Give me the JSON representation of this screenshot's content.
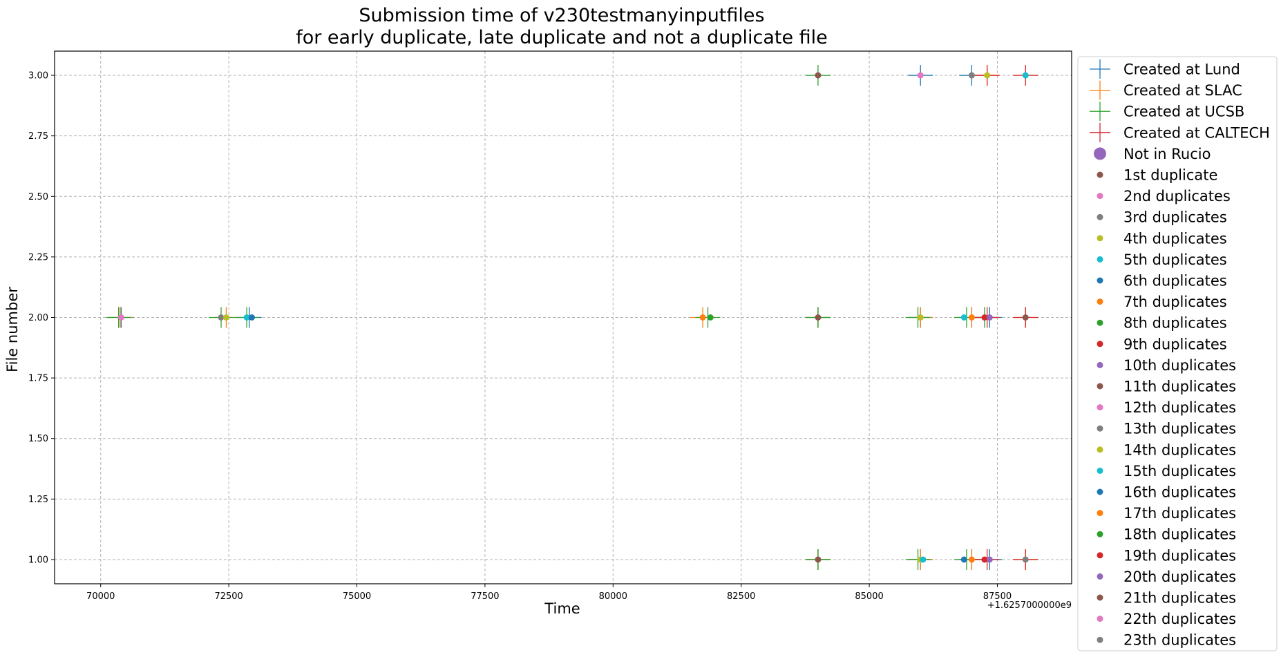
{
  "chart_data": {
    "type": "scatter",
    "title": "Submission time of v230testmanyinputfiles",
    "subtitle": "for early duplicate, late duplicate and not a duplicate file",
    "xlabel": "Time",
    "ylabel": "File number",
    "x_offset_label": "+1.6257000000e9",
    "xlim": [
      69100,
      88950
    ],
    "ylim": [
      0.9,
      3.1
    ],
    "xticks": [
      70000,
      72500,
      75000,
      77500,
      80000,
      82500,
      85000,
      87500
    ],
    "xtick_labels": [
      "70000",
      "72500",
      "75000",
      "77500",
      "80000",
      "82500",
      "85000",
      "87500"
    ],
    "yticks": [
      1.0,
      1.25,
      1.5,
      1.75,
      2.0,
      2.25,
      2.5,
      2.75,
      3.0
    ],
    "ytick_labels": [
      "1.00",
      "1.25",
      "1.50",
      "1.75",
      "2.00",
      "2.25",
      "2.50",
      "2.75",
      "3.00"
    ],
    "grid": true,
    "legend_placement": "outside-right",
    "created_series": [
      {
        "name": "Created at Lund",
        "color": "#1f77b4",
        "points": [
          [
            70400,
            2
          ],
          [
            72900,
            2
          ],
          [
            84000,
            1
          ],
          [
            84000,
            2
          ],
          [
            86000,
            1
          ],
          [
            86000,
            2
          ],
          [
            86000,
            3
          ],
          [
            87000,
            1
          ],
          [
            87000,
            2
          ],
          [
            87000,
            3
          ],
          [
            87350,
            1
          ],
          [
            87350,
            2
          ]
        ]
      },
      {
        "name": "Created at SLAC",
        "color": "#ff7f0e",
        "points": [
          [
            70380,
            2
          ],
          [
            72450,
            2
          ],
          [
            81750,
            2
          ],
          [
            84000,
            1
          ],
          [
            84000,
            2
          ],
          [
            86000,
            1
          ],
          [
            86000,
            2
          ],
          [
            87000,
            1
          ],
          [
            87000,
            2
          ],
          [
            87300,
            3
          ],
          [
            88050,
            1
          ],
          [
            88050,
            2
          ]
        ]
      },
      {
        "name": "Created at UCSB",
        "color": "#2ca02c",
        "points": [
          [
            70350,
            2
          ],
          [
            72350,
            2
          ],
          [
            72850,
            2
          ],
          [
            81850,
            2
          ],
          [
            84000,
            1
          ],
          [
            84000,
            2
          ],
          [
            84000,
            3
          ],
          [
            85950,
            1
          ],
          [
            85950,
            2
          ],
          [
            86900,
            1
          ],
          [
            86900,
            2
          ],
          [
            87250,
            2
          ]
        ]
      },
      {
        "name": "Created at CALTECH",
        "color": "#d62728",
        "points": [
          [
            87300,
            1
          ],
          [
            87300,
            2
          ],
          [
            87300,
            3
          ],
          [
            88050,
            1
          ],
          [
            88050,
            2
          ],
          [
            88050,
            3
          ]
        ]
      }
    ],
    "not_in_rucio": {
      "name": "Not in Rucio",
      "color": "#9467bd"
    },
    "duplicate_series": [
      {
        "name": "1st duplicate",
        "color": "#8c564b",
        "points": [
          [
            84000,
            1
          ],
          [
            84000,
            2
          ],
          [
            84000,
            3
          ]
        ]
      },
      {
        "name": "2nd duplicates",
        "color": "#e377c2",
        "points": [
          [
            70400,
            2
          ],
          [
            86000,
            3
          ]
        ]
      },
      {
        "name": "3rd duplicates",
        "color": "#7f7f7f",
        "points": [
          [
            72350,
            2
          ],
          [
            87000,
            3
          ]
        ]
      },
      {
        "name": "4th duplicates",
        "color": "#bcbd22",
        "points": [
          [
            72450,
            2
          ],
          [
            86000,
            1
          ],
          [
            86000,
            2
          ],
          [
            87300,
            3
          ]
        ]
      },
      {
        "name": "5th duplicates",
        "color": "#17becf",
        "points": [
          [
            72850,
            2
          ],
          [
            86050,
            1
          ],
          [
            86850,
            2
          ],
          [
            88050,
            3
          ]
        ]
      },
      {
        "name": "6th duplicates",
        "color": "#1f77b4",
        "points": [
          [
            72950,
            2
          ],
          [
            86850,
            1
          ]
        ]
      },
      {
        "name": "7th duplicates",
        "color": "#ff7f0e",
        "points": [
          [
            81750,
            2
          ],
          [
            87000,
            1
          ],
          [
            87000,
            2
          ]
        ]
      },
      {
        "name": "8th duplicates",
        "color": "#2ca02c",
        "points": [
          [
            81900,
            2
          ]
        ]
      },
      {
        "name": "9th duplicates",
        "color": "#d62728",
        "points": [
          [
            87250,
            1
          ],
          [
            87250,
            2
          ]
        ]
      },
      {
        "name": "10th duplicates",
        "color": "#9467bd",
        "points": [
          [
            87350,
            1
          ],
          [
            87350,
            2
          ]
        ]
      },
      {
        "name": "11th duplicates",
        "color": "#8c564b",
        "points": [
          [
            88050,
            2
          ]
        ]
      },
      {
        "name": "12th duplicates",
        "color": "#e377c2",
        "points": []
      },
      {
        "name": "13th duplicates",
        "color": "#7f7f7f",
        "points": [
          [
            88050,
            1
          ]
        ]
      },
      {
        "name": "14th duplicates",
        "color": "#bcbd22",
        "points": []
      },
      {
        "name": "15th duplicates",
        "color": "#17becf",
        "points": []
      },
      {
        "name": "16th duplicates",
        "color": "#1f77b4",
        "points": []
      },
      {
        "name": "17th duplicates",
        "color": "#ff7f0e",
        "points": []
      },
      {
        "name": "18th duplicates",
        "color": "#2ca02c",
        "points": []
      },
      {
        "name": "19th duplicates",
        "color": "#d62728",
        "points": []
      },
      {
        "name": "20th duplicates",
        "color": "#9467bd",
        "points": []
      },
      {
        "name": "21th duplicates",
        "color": "#8c564b",
        "points": []
      },
      {
        "name": "22th duplicates",
        "color": "#e377c2",
        "points": []
      },
      {
        "name": "23th duplicates",
        "color": "#7f7f7f",
        "points": []
      }
    ]
  }
}
